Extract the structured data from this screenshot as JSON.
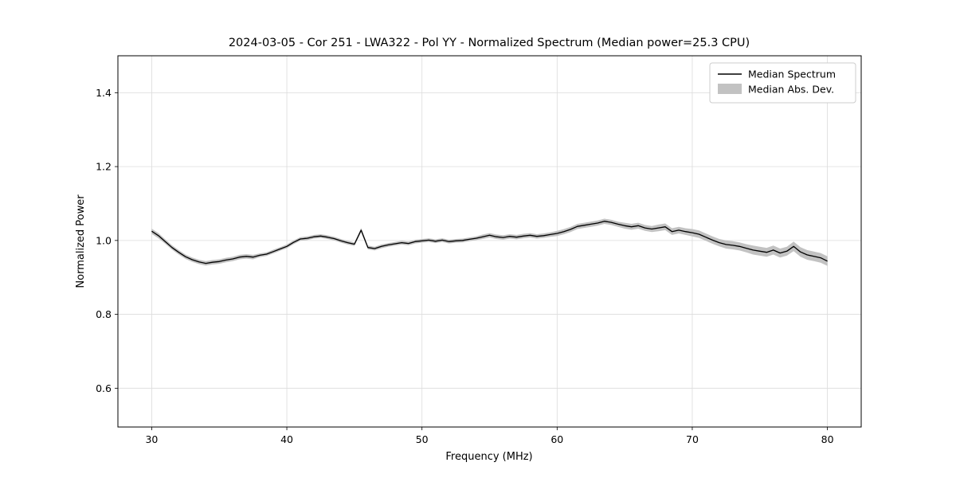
{
  "chart_data": {
    "type": "line",
    "title": "2024-03-05 - Cor 251 - LWA322 - Pol YY - Normalized Spectrum (Median power=25.3 CPU)",
    "xlabel": "Frequency (MHz)",
    "ylabel": "Normalized Power",
    "xlim": [
      27.5,
      82.5
    ],
    "ylim": [
      0.495,
      1.5
    ],
    "xticks": [
      30,
      40,
      50,
      60,
      70,
      80
    ],
    "xticklabels": [
      "30",
      "40",
      "50",
      "60",
      "70",
      "80"
    ],
    "yticks": [
      0.6,
      0.8,
      1.0,
      1.2,
      1.4
    ],
    "yticklabels": [
      "0.6",
      "0.8",
      "1.0",
      "1.2",
      "1.4"
    ],
    "grid": true,
    "grid_color": "#dcdcdc",
    "line_color": "#000000",
    "band_color": "#c2c2c2",
    "legend_position": "upper right",
    "legend_entries": [
      {
        "label": "Median Spectrum",
        "type": "line",
        "color": "#000000"
      },
      {
        "label": "Median Abs. Dev.",
        "type": "band",
        "color": "#c2c2c2"
      }
    ],
    "x": [
      30.0,
      30.5,
      31.0,
      31.5,
      32.0,
      32.5,
      33.0,
      33.5,
      34.0,
      34.5,
      35.0,
      35.5,
      36.0,
      36.5,
      37.0,
      37.5,
      38.0,
      38.5,
      39.0,
      39.5,
      40.0,
      40.5,
      41.0,
      41.5,
      42.0,
      42.5,
      43.0,
      43.5,
      44.0,
      44.5,
      45.0,
      45.5,
      46.0,
      46.5,
      47.0,
      47.5,
      48.0,
      48.5,
      49.0,
      49.5,
      50.0,
      50.5,
      51.0,
      51.5,
      52.0,
      52.5,
      53.0,
      53.5,
      54.0,
      54.5,
      55.0,
      55.5,
      56.0,
      56.5,
      57.0,
      57.5,
      58.0,
      58.5,
      59.0,
      59.5,
      60.0,
      60.5,
      61.0,
      61.5,
      62.0,
      62.5,
      63.0,
      63.5,
      64.0,
      64.5,
      65.0,
      65.5,
      66.0,
      66.5,
      67.0,
      67.5,
      68.0,
      68.5,
      69.0,
      69.5,
      70.0,
      70.5,
      71.0,
      71.5,
      72.0,
      72.5,
      73.0,
      73.5,
      74.0,
      74.5,
      75.0,
      75.5,
      76.0,
      76.5,
      77.0,
      77.5,
      78.0,
      78.5,
      79.0,
      79.5,
      80.0
    ],
    "median": [
      1.025,
      1.013,
      0.997,
      0.981,
      0.968,
      0.956,
      0.948,
      0.942,
      0.938,
      0.941,
      0.943,
      0.947,
      0.95,
      0.955,
      0.957,
      0.955,
      0.96,
      0.963,
      0.97,
      0.977,
      0.984,
      0.995,
      1.004,
      1.006,
      1.01,
      1.012,
      1.009,
      1.005,
      0.999,
      0.994,
      0.99,
      1.028,
      0.981,
      0.978,
      0.984,
      0.988,
      0.991,
      0.994,
      0.992,
      0.997,
      0.999,
      1.001,
      0.998,
      1.001,
      0.997,
      0.999,
      1.0,
      1.003,
      1.006,
      1.01,
      1.014,
      1.01,
      1.008,
      1.011,
      1.009,
      1.012,
      1.014,
      1.011,
      1.013,
      1.016,
      1.019,
      1.024,
      1.03,
      1.038,
      1.041,
      1.044,
      1.047,
      1.052,
      1.049,
      1.044,
      1.04,
      1.037,
      1.04,
      1.034,
      1.031,
      1.034,
      1.037,
      1.024,
      1.028,
      1.024,
      1.021,
      1.017,
      1.009,
      1.001,
      0.994,
      0.989,
      0.987,
      0.984,
      0.979,
      0.974,
      0.971,
      0.968,
      0.974,
      0.966,
      0.971,
      0.984,
      0.969,
      0.961,
      0.957,
      0.953,
      0.944
    ],
    "mad": [
      0.007,
      0.007,
      0.006,
      0.006,
      0.006,
      0.006,
      0.006,
      0.006,
      0.006,
      0.006,
      0.006,
      0.006,
      0.006,
      0.006,
      0.006,
      0.006,
      0.005,
      0.005,
      0.005,
      0.005,
      0.005,
      0.005,
      0.005,
      0.005,
      0.005,
      0.005,
      0.005,
      0.005,
      0.005,
      0.005,
      0.005,
      0.006,
      0.005,
      0.005,
      0.005,
      0.005,
      0.005,
      0.005,
      0.005,
      0.005,
      0.005,
      0.005,
      0.005,
      0.005,
      0.005,
      0.005,
      0.005,
      0.005,
      0.005,
      0.006,
      0.006,
      0.006,
      0.006,
      0.006,
      0.006,
      0.006,
      0.006,
      0.006,
      0.006,
      0.006,
      0.007,
      0.007,
      0.007,
      0.007,
      0.007,
      0.007,
      0.007,
      0.007,
      0.007,
      0.007,
      0.008,
      0.008,
      0.008,
      0.008,
      0.008,
      0.009,
      0.009,
      0.009,
      0.009,
      0.009,
      0.01,
      0.01,
      0.01,
      0.01,
      0.01,
      0.011,
      0.011,
      0.011,
      0.011,
      0.012,
      0.012,
      0.012,
      0.012,
      0.012,
      0.012,
      0.013,
      0.013,
      0.013,
      0.013,
      0.013,
      0.013
    ]
  }
}
